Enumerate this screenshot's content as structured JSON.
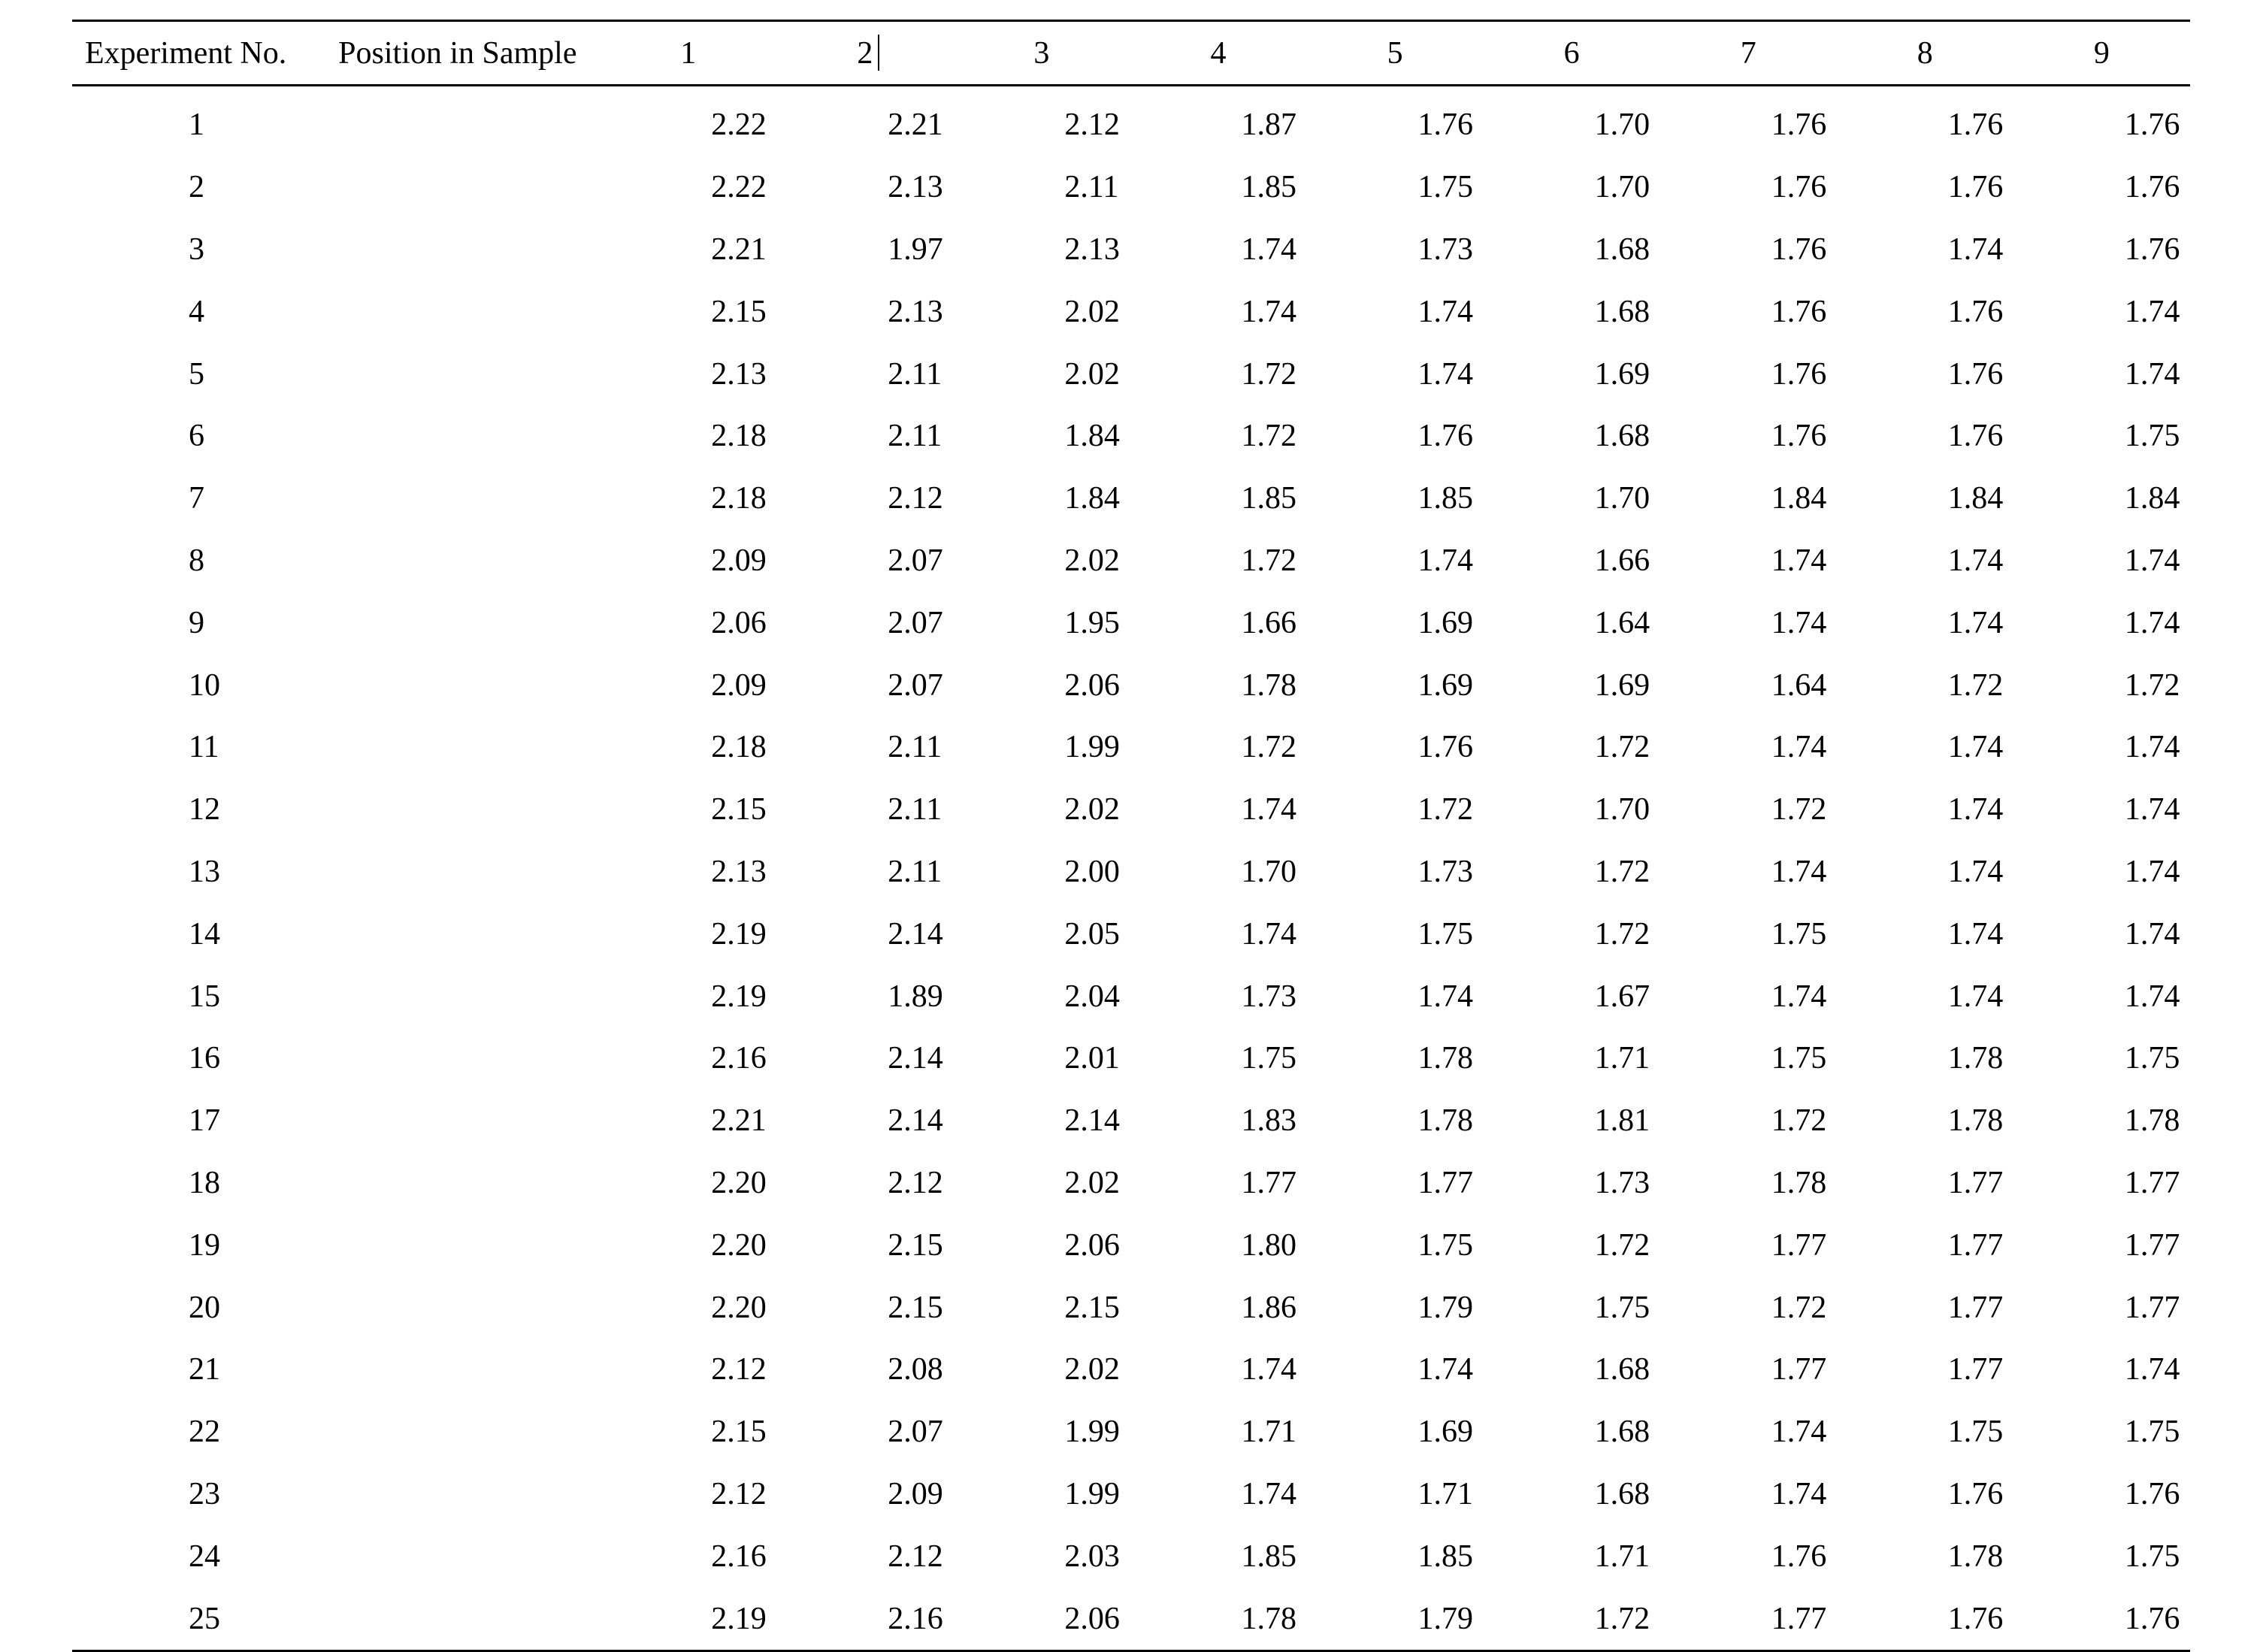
{
  "table": {
    "headers": {
      "experiment_no": "Experiment No.",
      "position_in_sample": "Position in Sample",
      "positions": [
        "1",
        "2",
        "3",
        "4",
        "5",
        "6",
        "7",
        "8",
        "9"
      ]
    },
    "rows": [
      {
        "exp": "1",
        "values": [
          "2.22",
          "2.21",
          "2.12",
          "1.87",
          "1.76",
          "1.70",
          "1.76",
          "1.76",
          "1.76"
        ]
      },
      {
        "exp": "2",
        "values": [
          "2.22",
          "2.13",
          "2.11",
          "1.85",
          "1.75",
          "1.70",
          "1.76",
          "1.76",
          "1.76"
        ]
      },
      {
        "exp": "3",
        "values": [
          "2.21",
          "1.97",
          "2.13",
          "1.74",
          "1.73",
          "1.68",
          "1.76",
          "1.74",
          "1.76"
        ]
      },
      {
        "exp": "4",
        "values": [
          "2.15",
          "2.13",
          "2.02",
          "1.74",
          "1.74",
          "1.68",
          "1.76",
          "1.76",
          "1.74"
        ]
      },
      {
        "exp": "5",
        "values": [
          "2.13",
          "2.11",
          "2.02",
          "1.72",
          "1.74",
          "1.69",
          "1.76",
          "1.76",
          "1.74"
        ]
      },
      {
        "exp": "6",
        "values": [
          "2.18",
          "2.11",
          "1.84",
          "1.72",
          "1.76",
          "1.68",
          "1.76",
          "1.76",
          "1.75"
        ]
      },
      {
        "exp": "7",
        "values": [
          "2.18",
          "2.12",
          "1.84",
          "1.85",
          "1.85",
          "1.70",
          "1.84",
          "1.84",
          "1.84"
        ]
      },
      {
        "exp": "8",
        "values": [
          "2.09",
          "2.07",
          "2.02",
          "1.72",
          "1.74",
          "1.66",
          "1.74",
          "1.74",
          "1.74"
        ]
      },
      {
        "exp": "9",
        "values": [
          "2.06",
          "2.07",
          "1.95",
          "1.66",
          "1.69",
          "1.64",
          "1.74",
          "1.74",
          "1.74"
        ]
      },
      {
        "exp": "10",
        "values": [
          "2.09",
          "2.07",
          "2.06",
          "1.78",
          "1.69",
          "1.69",
          "1.64",
          "1.72",
          "1.72"
        ]
      },
      {
        "exp": "11",
        "values": [
          "2.18",
          "2.11",
          "1.99",
          "1.72",
          "1.76",
          "1.72",
          "1.74",
          "1.74",
          "1.74"
        ]
      },
      {
        "exp": "12",
        "values": [
          "2.15",
          "2.11",
          "2.02",
          "1.74",
          "1.72",
          "1.70",
          "1.72",
          "1.74",
          "1.74"
        ]
      },
      {
        "exp": "13",
        "values": [
          "2.13",
          "2.11",
          "2.00",
          "1.70",
          "1.73",
          "1.72",
          "1.74",
          "1.74",
          "1.74"
        ]
      },
      {
        "exp": "14",
        "values": [
          "2.19",
          "2.14",
          "2.05",
          "1.74",
          "1.75",
          "1.72",
          "1.75",
          "1.74",
          "1.74"
        ]
      },
      {
        "exp": "15",
        "values": [
          "2.19",
          "1.89",
          "2.04",
          "1.73",
          "1.74",
          "1.67",
          "1.74",
          "1.74",
          "1.74"
        ]
      },
      {
        "exp": "16",
        "values": [
          "2.16",
          "2.14",
          "2.01",
          "1.75",
          "1.78",
          "1.71",
          "1.75",
          "1.78",
          "1.75"
        ]
      },
      {
        "exp": "17",
        "values": [
          "2.21",
          "2.14",
          "2.14",
          "1.83",
          "1.78",
          "1.81",
          "1.72",
          "1.78",
          "1.78"
        ]
      },
      {
        "exp": "18",
        "values": [
          "2.20",
          "2.12",
          "2.02",
          "1.77",
          "1.77",
          "1.73",
          "1.78",
          "1.77",
          "1.77"
        ]
      },
      {
        "exp": "19",
        "values": [
          "2.20",
          "2.15",
          "2.06",
          "1.80",
          "1.75",
          "1.72",
          "1.77",
          "1.77",
          "1.77"
        ]
      },
      {
        "exp": "20",
        "values": [
          "2.20",
          "2.15",
          "2.15",
          "1.86",
          "1.79",
          "1.75",
          "1.72",
          "1.77",
          "1.77"
        ]
      },
      {
        "exp": "21",
        "values": [
          "2.12",
          "2.08",
          "2.02",
          "1.74",
          "1.74",
          "1.68",
          "1.77",
          "1.77",
          "1.74"
        ]
      },
      {
        "exp": "22",
        "values": [
          "2.15",
          "2.07",
          "1.99",
          "1.71",
          "1.69",
          "1.68",
          "1.74",
          "1.75",
          "1.75"
        ]
      },
      {
        "exp": "23",
        "values": [
          "2.12",
          "2.09",
          "1.99",
          "1.74",
          "1.71",
          "1.68",
          "1.74",
          "1.76",
          "1.76"
        ]
      },
      {
        "exp": "24",
        "values": [
          "2.16",
          "2.12",
          "2.03",
          "1.85",
          "1.85",
          "1.71",
          "1.76",
          "1.78",
          "1.75"
        ]
      },
      {
        "exp": "25",
        "values": [
          "2.19",
          "2.16",
          "2.06",
          "1.78",
          "1.79",
          "1.72",
          "1.77",
          "1.76",
          "1.76"
        ]
      }
    ]
  }
}
